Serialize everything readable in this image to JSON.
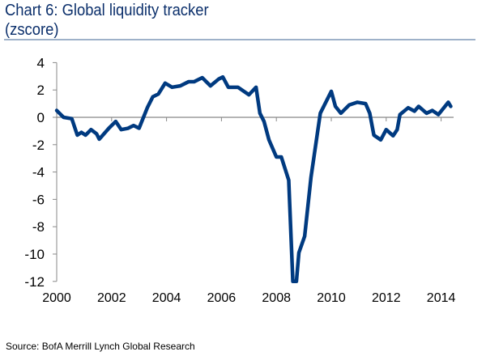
{
  "chart_data": {
    "type": "line",
    "title": "Chart 6: Global liquidity tracker",
    "subtitle": "(zscore)",
    "source": "Source: BofA Merrill Lynch Global Research",
    "xlabel": "",
    "ylabel": "zscore",
    "xlim": [
      2000,
      2014.45
    ],
    "ylim": [
      -12,
      4
    ],
    "xticks": [
      "2000",
      "2002",
      "2004",
      "2006",
      "2008",
      "2010",
      "2012",
      "2014"
    ],
    "yticks": [
      "4",
      "2",
      "0",
      "-2",
      "-4",
      "-6",
      "-8",
      "-10",
      "-12"
    ],
    "line_color": "#003a80",
    "series": [
      {
        "name": "Global liquidity tracker",
        "x": [
          2000.0,
          2000.25,
          2000.55,
          2000.75,
          2000.9,
          2001.05,
          2001.25,
          2001.45,
          2001.55,
          2001.9,
          2002.15,
          2002.35,
          2002.6,
          2002.8,
          2003.0,
          2003.3,
          2003.5,
          2003.7,
          2003.95,
          2004.2,
          2004.5,
          2004.8,
          2005.0,
          2005.3,
          2005.6,
          2005.9,
          2006.05,
          2006.25,
          2006.6,
          2007.0,
          2007.26,
          2007.4,
          2007.55,
          2007.73,
          2008.0,
          2008.18,
          2008.45,
          2008.6,
          2008.73,
          2008.82,
          2009.03,
          2009.26,
          2009.6,
          2010.0,
          2010.15,
          2010.35,
          2010.65,
          2010.95,
          2011.25,
          2011.4,
          2011.55,
          2011.8,
          2012.0,
          2012.25,
          2012.4,
          2012.5,
          2012.8,
          2013.03,
          2013.18,
          2013.47,
          2013.68,
          2013.9,
          2014.26,
          2014.35
        ],
        "y": [
          0.5,
          0.0,
          -0.1,
          -1.3,
          -1.1,
          -1.3,
          -0.9,
          -1.2,
          -1.6,
          -0.8,
          -0.3,
          -0.9,
          -0.8,
          -0.6,
          -0.8,
          0.7,
          1.5,
          1.7,
          2.5,
          2.2,
          2.3,
          2.6,
          2.6,
          2.9,
          2.3,
          2.8,
          2.95,
          2.2,
          2.2,
          1.65,
          2.2,
          0.3,
          -0.3,
          -1.65,
          -2.9,
          -2.9,
          -4.6,
          -12,
          -12,
          -9.9,
          -8.7,
          -4.4,
          0.3,
          1.9,
          0.8,
          0.3,
          0.9,
          1.1,
          1.0,
          0.3,
          -1.3,
          -1.65,
          -0.9,
          -1.35,
          -0.9,
          0.2,
          0.7,
          0.45,
          0.8,
          0.3,
          0.5,
          0.2,
          1.1,
          0.8
        ]
      }
    ]
  }
}
